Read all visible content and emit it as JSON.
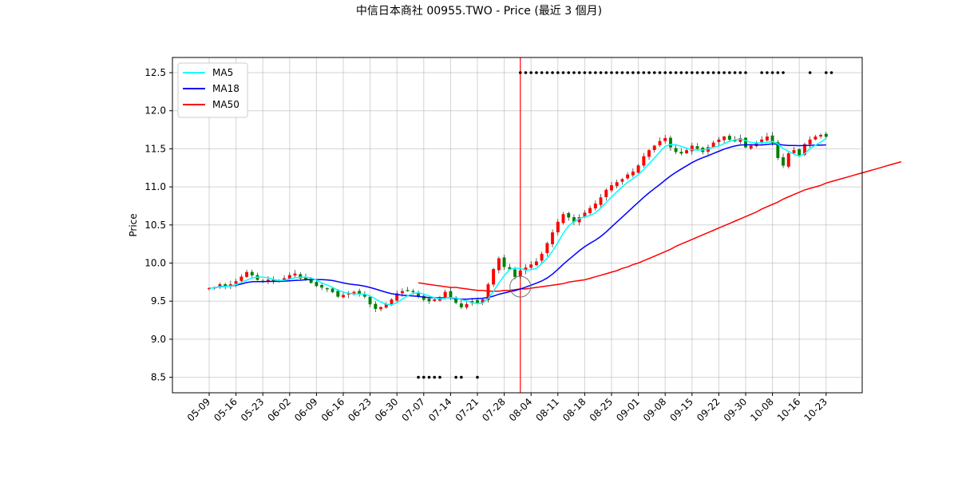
{
  "chart_data": {
    "type": "candlestick",
    "title": "中信日本商社 00955.TWO - Price (最近 3 個月)",
    "ylabel": "Price",
    "ylim": [
      8.3,
      12.7
    ],
    "yticks": [
      8.5,
      9.0,
      9.5,
      10.0,
      10.5,
      11.0,
      11.5,
      12.0,
      12.5
    ],
    "ytick_labels": [
      "8.5",
      "9.0",
      "9.5",
      "10.0",
      "10.5",
      "11.0",
      "11.5",
      "12.0",
      "12.5"
    ],
    "grid": true,
    "legend_position": "top-left",
    "xtick_labels": [
      "05-09",
      "05-16",
      "05-23",
      "06-02",
      "06-09",
      "06-16",
      "06-23",
      "06-30",
      "07-07",
      "07-14",
      "07-21",
      "07-28",
      "08-04",
      "08-11",
      "08-18",
      "08-25",
      "09-01",
      "09-08",
      "09-15",
      "09-22",
      "09-30",
      "10-08",
      "10-16",
      "10-23"
    ],
    "xtick_index": [
      0,
      5,
      10,
      15,
      20,
      25,
      30,
      35,
      40,
      45,
      50,
      55,
      60,
      65,
      70,
      75,
      80,
      85,
      90,
      95,
      100,
      105,
      110,
      115
    ],
    "colors": {
      "up": "#ff0000",
      "down": "#008000",
      "ma5": "#00ffff",
      "ma18": "#0000ff",
      "ma50": "#ff0000",
      "vline": "#ff0000",
      "grid": "#b0b0b0"
    },
    "series": [
      {
        "name": "MA5",
        "color": "#00ffff"
      },
      {
        "name": "MA18",
        "color": "#0000ff"
      },
      {
        "name": "MA50",
        "color": "#ff0000"
      }
    ],
    "closes": [
      9.67,
      9.68,
      9.72,
      9.7,
      9.72,
      9.76,
      9.82,
      9.88,
      9.84,
      9.78,
      9.76,
      9.78,
      9.76,
      9.77,
      9.8,
      9.84,
      9.86,
      9.8,
      9.78,
      9.74,
      9.7,
      9.68,
      9.66,
      9.62,
      9.56,
      9.58,
      9.6,
      9.62,
      9.6,
      9.56,
      9.46,
      9.4,
      9.42,
      9.46,
      9.52,
      9.6,
      9.63,
      9.64,
      9.62,
      9.56,
      9.52,
      9.5,
      9.52,
      9.54,
      9.62,
      9.54,
      9.48,
      9.42,
      9.46,
      9.5,
      9.48,
      9.52,
      9.72,
      9.92,
      10.06,
      9.95,
      9.92,
      9.82,
      9.9,
      9.94,
      9.98,
      10.02,
      10.12,
      10.26,
      10.4,
      10.54,
      10.64,
      10.6,
      10.54,
      10.6,
      10.66,
      10.72,
      10.78,
      10.86,
      10.96,
      11.02,
      11.06,
      11.1,
      11.16,
      11.2,
      11.28,
      11.4,
      11.48,
      11.54,
      11.6,
      11.64,
      11.52,
      11.46,
      11.44,
      11.48,
      11.54,
      11.5,
      11.46,
      11.52,
      11.58,
      11.62,
      11.66,
      11.62,
      11.6,
      11.64,
      11.52,
      11.54,
      11.58,
      11.62,
      11.66,
      11.58,
      11.38,
      11.28,
      11.44,
      11.48,
      11.42,
      11.56,
      11.62,
      11.66,
      11.68,
      11.66
    ],
    "ma50_start": 39,
    "ma50_values": [
      9.74,
      9.73,
      9.72,
      9.71,
      9.7,
      9.69,
      9.68,
      9.68,
      9.67,
      9.66,
      9.65,
      9.64,
      9.64,
      9.63,
      9.63,
      9.63,
      9.64,
      9.64,
      9.65,
      9.66,
      9.66,
      9.67,
      9.68,
      9.69,
      9.7,
      9.71,
      9.72,
      9.73,
      9.75,
      9.76,
      9.77,
      9.78,
      9.8,
      9.82,
      9.84,
      9.86,
      9.88,
      9.9,
      9.93,
      9.95,
      9.98,
      10.0,
      10.03,
      10.06,
      10.09,
      10.12,
      10.15,
      10.18,
      10.22,
      10.25,
      10.28,
      10.31,
      10.34,
      10.37,
      10.4,
      10.43,
      10.46,
      10.49,
      10.52,
      10.55,
      10.58,
      10.61,
      10.64,
      10.67,
      10.71,
      10.74,
      10.77,
      10.8,
      10.84,
      10.87,
      10.9,
      10.93,
      10.96,
      10.98,
      11.0,
      11.02,
      11.05,
      11.07,
      11.09,
      11.11,
      11.13,
      11.15,
      11.17,
      11.19,
      11.21,
      11.23,
      11.25,
      11.27,
      11.29,
      11.31,
      11.33
    ],
    "vline_index": 58,
    "circle_marker": {
      "index": 58,
      "value": 9.69
    },
    "top_dot_value": 12.5,
    "top_dot_indices": [
      58,
      59,
      60,
      61,
      62,
      63,
      64,
      65,
      66,
      67,
      68,
      69,
      70,
      71,
      72,
      73,
      74,
      75,
      76,
      77,
      78,
      79,
      80,
      81,
      82,
      83,
      84,
      85,
      86,
      87,
      88,
      89,
      90,
      91,
      92,
      93,
      94,
      95,
      96,
      97,
      98,
      99,
      100,
      103,
      104,
      105,
      106,
      107,
      112,
      115,
      116
    ],
    "bottom_dot_value": 8.5,
    "bottom_dot_indices": [
      39,
      40,
      41,
      42,
      43,
      46,
      47,
      50
    ]
  }
}
